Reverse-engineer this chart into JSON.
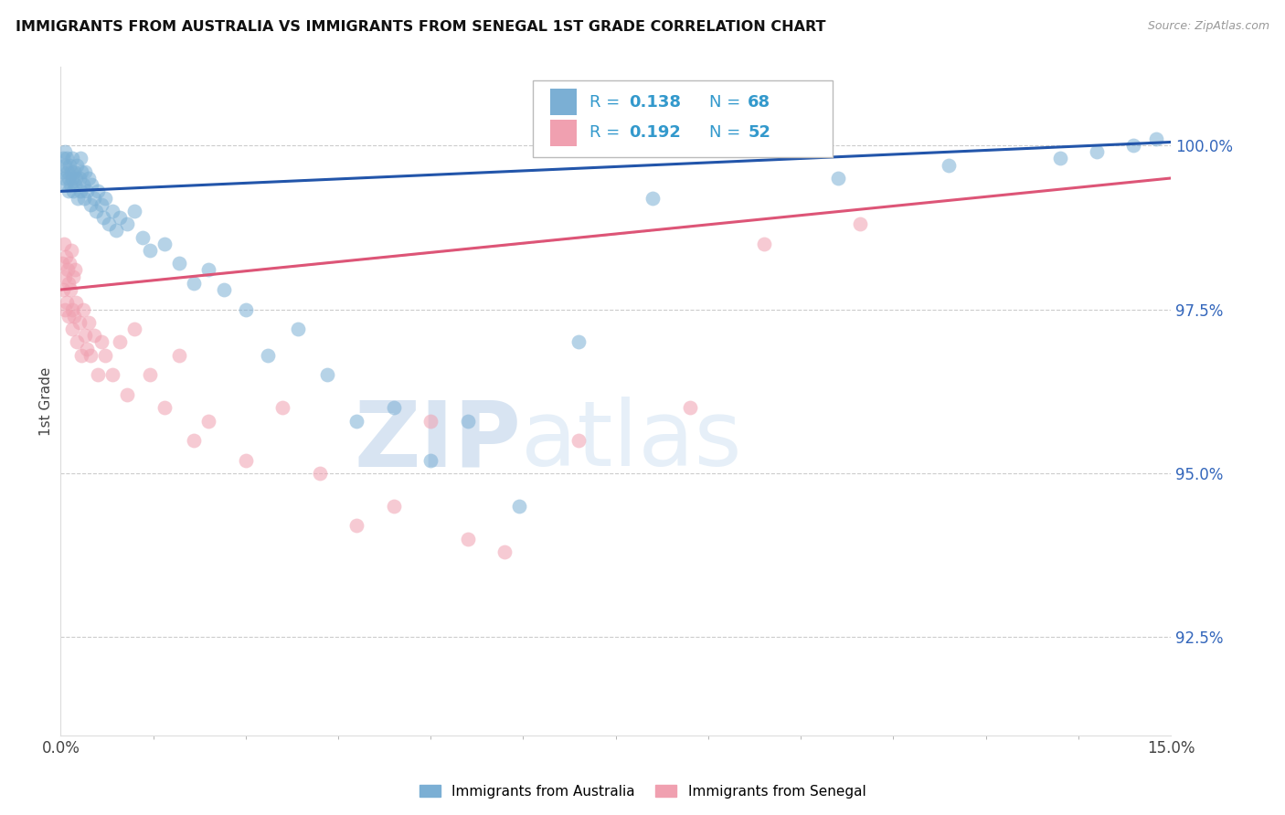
{
  "title": "IMMIGRANTS FROM AUSTRALIA VS IMMIGRANTS FROM SENEGAL 1ST GRADE CORRELATION CHART",
  "source": "Source: ZipAtlas.com",
  "ylabel": "1st Grade",
  "y_ticks": [
    92.5,
    95.0,
    97.5,
    100.0
  ],
  "x_min": 0.0,
  "x_max": 15.0,
  "y_min": 91.0,
  "y_max": 101.2,
  "australia_color": "#7bafd4",
  "senegal_color": "#f0a0b0",
  "australia_line_color": "#2255aa",
  "senegal_line_color": "#dd5577",
  "legend_color": "#3399cc",
  "legend_R_australia": "0.138",
  "legend_N_australia": "68",
  "legend_R_senegal": "0.192",
  "legend_N_senegal": "52",
  "watermark_zip": "ZIP",
  "watermark_atlas": "atlas",
  "background_color": "#ffffff",
  "aus_x": [
    0.02,
    0.03,
    0.04,
    0.05,
    0.06,
    0.07,
    0.08,
    0.09,
    0.1,
    0.11,
    0.12,
    0.13,
    0.14,
    0.15,
    0.16,
    0.17,
    0.18,
    0.19,
    0.2,
    0.22,
    0.23,
    0.25,
    0.26,
    0.27,
    0.28,
    0.3,
    0.32,
    0.33,
    0.35,
    0.38,
    0.4,
    0.42,
    0.45,
    0.48,
    0.5,
    0.55,
    0.58,
    0.6,
    0.65,
    0.7,
    0.75,
    0.8,
    0.9,
    1.0,
    1.1,
    1.2,
    1.4,
    1.6,
    1.8,
    2.0,
    2.2,
    2.5,
    2.8,
    3.2,
    3.6,
    4.0,
    4.5,
    5.0,
    5.5,
    6.2,
    7.0,
    8.0,
    10.5,
    12.0,
    13.5,
    14.0,
    14.5,
    14.8
  ],
  "aus_y": [
    99.6,
    99.8,
    99.5,
    99.9,
    99.7,
    99.4,
    99.8,
    99.6,
    99.5,
    99.3,
    99.7,
    99.4,
    99.6,
    99.5,
    99.8,
    99.3,
    99.6,
    99.4,
    99.5,
    99.7,
    99.2,
    99.5,
    99.8,
    99.3,
    99.6,
    99.4,
    99.2,
    99.6,
    99.3,
    99.5,
    99.1,
    99.4,
    99.2,
    99.0,
    99.3,
    99.1,
    98.9,
    99.2,
    98.8,
    99.0,
    98.7,
    98.9,
    98.8,
    99.0,
    98.6,
    98.4,
    98.5,
    98.2,
    97.9,
    98.1,
    97.8,
    97.5,
    96.8,
    97.2,
    96.5,
    95.8,
    96.0,
    95.2,
    95.8,
    94.5,
    97.0,
    99.2,
    99.5,
    99.7,
    99.8,
    99.9,
    100.0,
    100.1
  ],
  "sen_x": [
    0.02,
    0.03,
    0.04,
    0.05,
    0.06,
    0.07,
    0.08,
    0.09,
    0.1,
    0.11,
    0.12,
    0.13,
    0.14,
    0.15,
    0.16,
    0.17,
    0.18,
    0.19,
    0.2,
    0.22,
    0.25,
    0.28,
    0.3,
    0.33,
    0.35,
    0.38,
    0.4,
    0.45,
    0.5,
    0.55,
    0.6,
    0.7,
    0.8,
    0.9,
    1.0,
    1.2,
    1.4,
    1.6,
    1.8,
    2.0,
    2.5,
    3.0,
    3.5,
    4.0,
    4.5,
    5.0,
    5.5,
    6.0,
    7.0,
    8.5,
    9.5,
    10.8
  ],
  "sen_y": [
    98.2,
    97.8,
    98.5,
    98.0,
    97.5,
    98.3,
    97.6,
    98.1,
    97.9,
    97.4,
    98.2,
    97.8,
    98.4,
    97.5,
    97.2,
    98.0,
    97.4,
    98.1,
    97.6,
    97.0,
    97.3,
    96.8,
    97.5,
    97.1,
    96.9,
    97.3,
    96.8,
    97.1,
    96.5,
    97.0,
    96.8,
    96.5,
    97.0,
    96.2,
    97.2,
    96.5,
    96.0,
    96.8,
    95.5,
    95.8,
    95.2,
    96.0,
    95.0,
    94.2,
    94.5,
    95.8,
    94.0,
    93.8,
    95.5,
    96.0,
    98.5,
    98.8
  ],
  "aus_trend_x0": 0.0,
  "aus_trend_x1": 15.0,
  "aus_trend_y0": 99.3,
  "aus_trend_y1": 100.05,
  "sen_trend_x0": 0.0,
  "sen_trend_x1": 15.0,
  "sen_trend_y0": 97.8,
  "sen_trend_y1": 99.5,
  "sen_dash_x0": 0.0,
  "sen_dash_x1": 8.5,
  "sen_dash_y0": 97.8,
  "sen_dash_y1": 98.76
}
